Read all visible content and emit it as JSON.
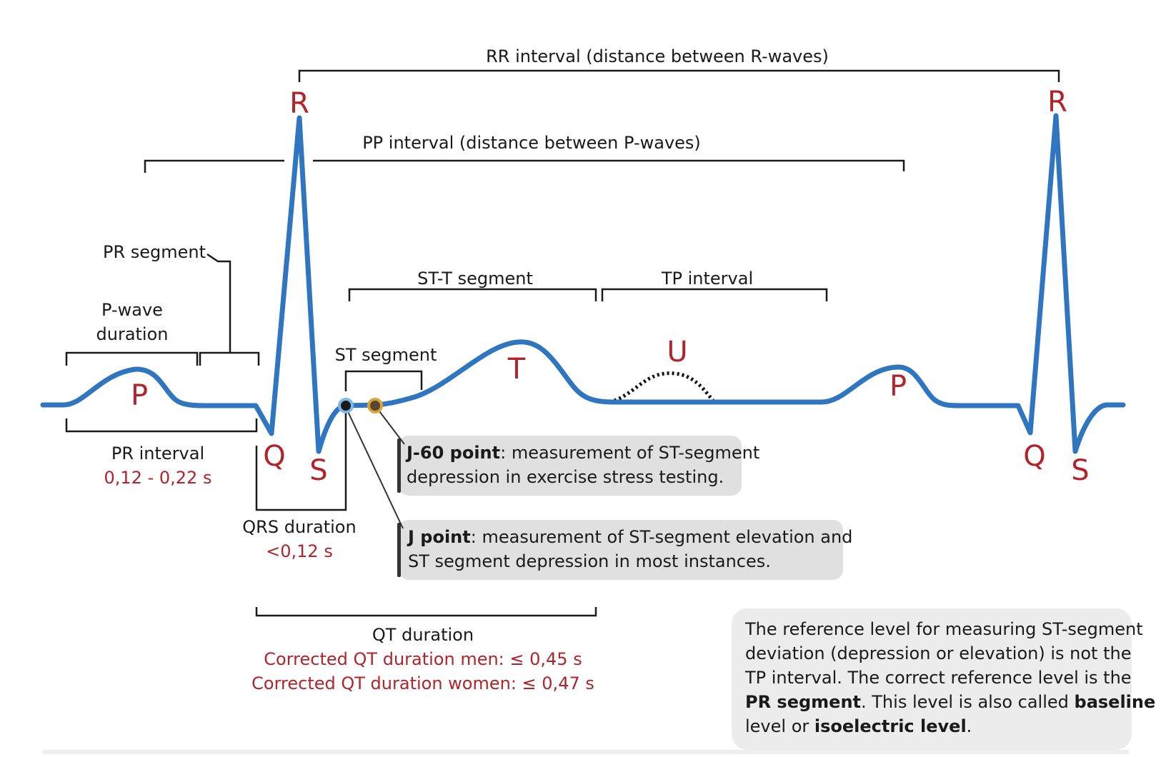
{
  "labels": {
    "rr_interval": "RR interval (distance between R-waves)",
    "pp_interval": "PP interval (distance between P-waves)",
    "pr_segment": "PR segment",
    "p_wave_duration_line1": "P-wave",
    "p_wave_duration_line2": "duration",
    "pr_interval": "PR interval",
    "pr_interval_value": "0,12 - 0,22 s",
    "qrs_duration": "QRS duration",
    "qrs_duration_value": "<0,12 s",
    "st_segment": "ST segment",
    "st_t_segment": "ST-T segment",
    "tp_interval": "TP interval",
    "qt_duration": "QT duration",
    "qt_men": "Corrected QT duration men: ≤ 0,45 s",
    "qt_women": "Corrected QT duration women: ≤ 0,47 s"
  },
  "waves": {
    "r1": "R",
    "r2": "R",
    "p1": "P",
    "p2": "P",
    "q1": "Q",
    "q2": "Q",
    "s1": "S",
    "s2": "S",
    "t": "T",
    "u": "U"
  },
  "callouts": {
    "j60": {
      "bold": "J-60 point",
      "line1_rest": ": measurement of ST-segment",
      "line2": "depression in exercise stress testing."
    },
    "j": {
      "bold": "J point",
      "line1_rest": ": measurement of ST-segment elevation and",
      "line2": "ST segment depression in most instances."
    }
  },
  "note": {
    "line1": "The reference level for measuring ST-segment",
    "line2": "deviation (depression or elevation) is not the",
    "line3": "TP interval. The correct reference level is the",
    "line4_bold1": "PR segment",
    "line4_rest": ". This level is also called ",
    "line4_bold2": "baseline",
    "line5_start": "level or ",
    "line5_bold": "isoelectric level",
    "line5_end": "."
  },
  "colors": {
    "wave": "#2f75bf",
    "label_red": "#b0242a",
    "callout_bg": "#e0e0e0",
    "note_bg": "#ececec"
  }
}
